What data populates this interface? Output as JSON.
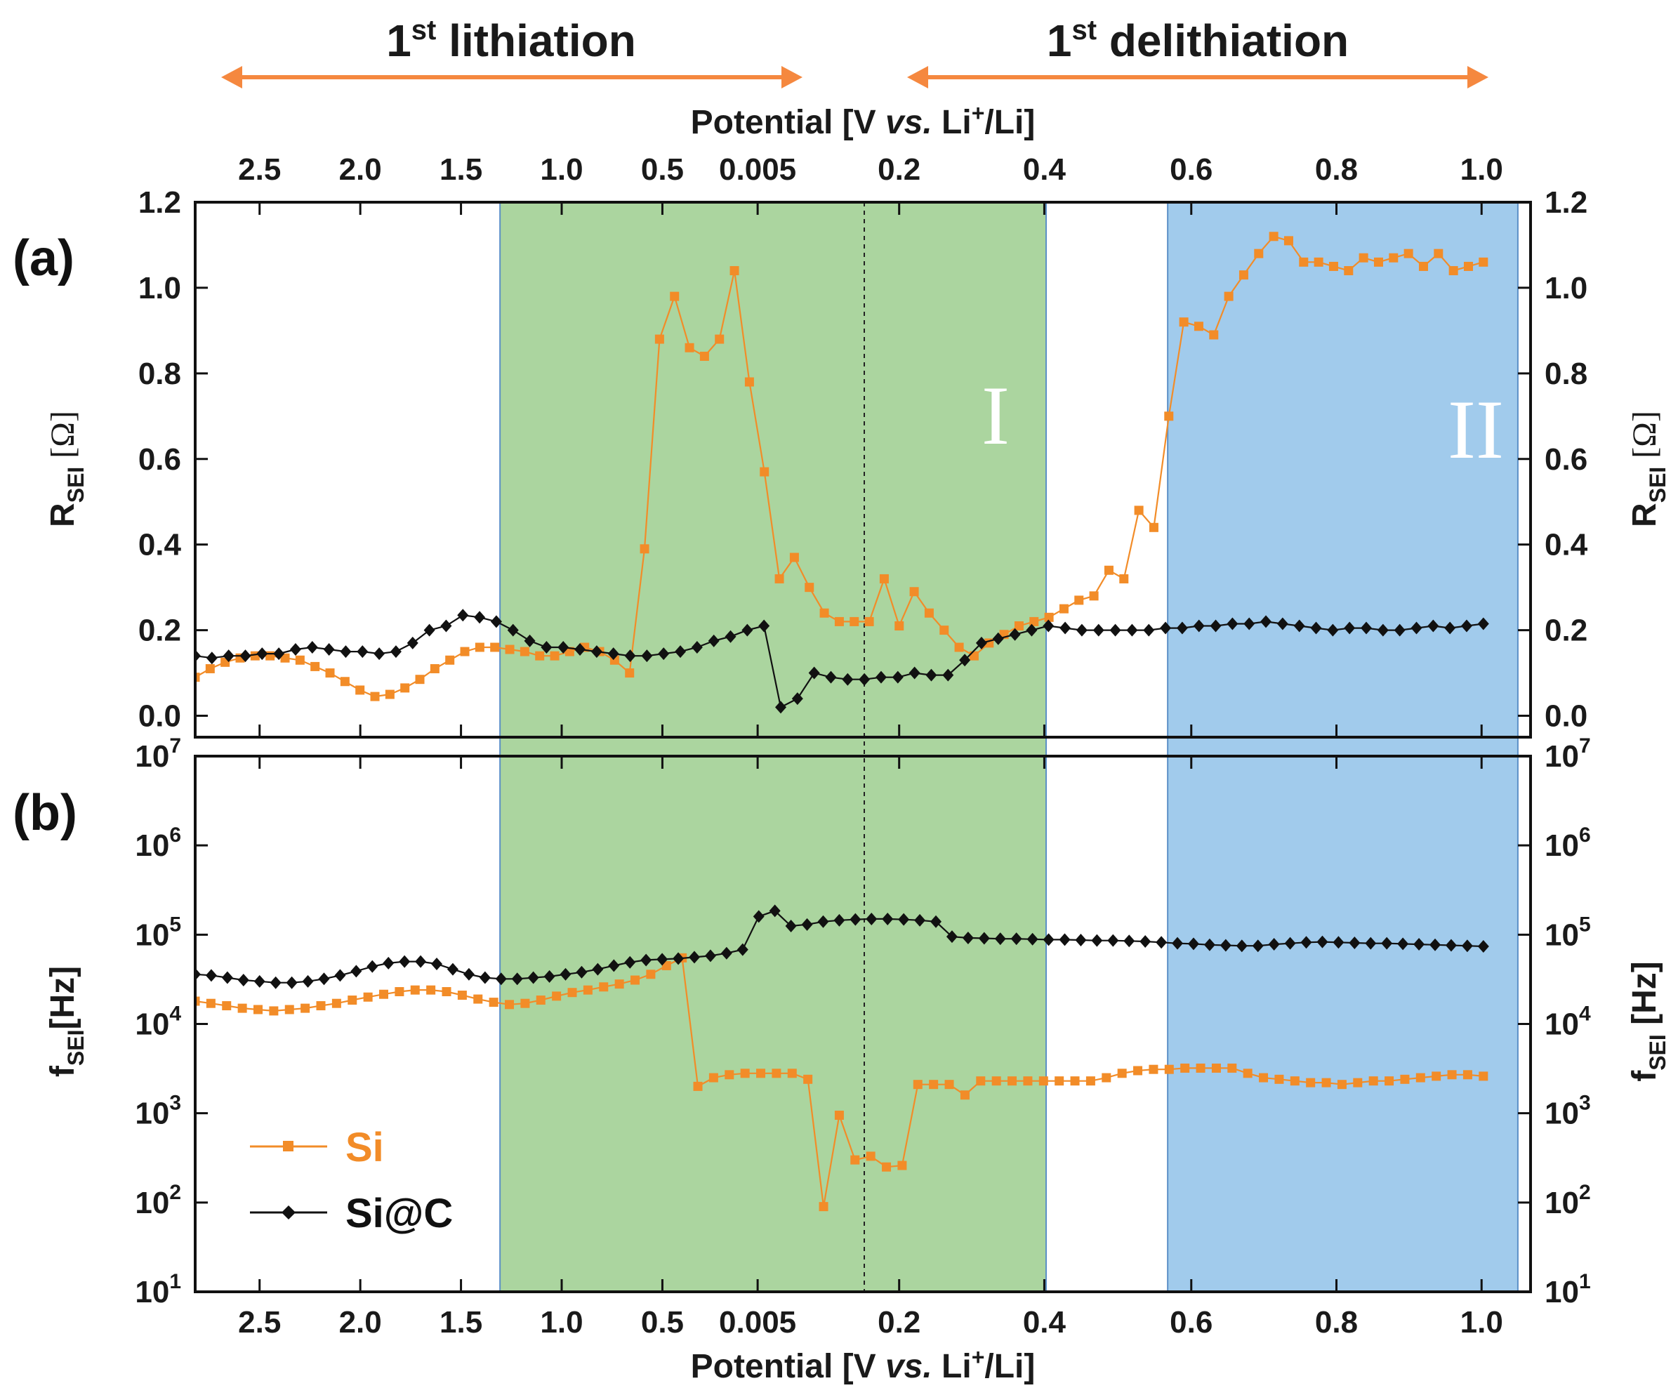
{
  "chart_data": {
    "type": "line",
    "header": {
      "lithiation_label": "1",
      "lithiation_sup": "st",
      "lithiation_rest": " lithiation",
      "delithiation_label": "1",
      "delithiation_sup": "st",
      "delithiation_rest": " delithiation",
      "arrow_color": "#f5883f"
    },
    "x_axis": {
      "title_main": "Potential  [V ",
      "title_italic": "vs.",
      "title_tail_a": " Li",
      "title_sup": "+",
      "title_tail_b": "/Li]",
      "tick_labels": [
        "2.5",
        "2.0",
        "1.5",
        "1.0",
        "0.5",
        "0.005",
        "0.2",
        "0.4",
        "0.6",
        "0.8",
        "1.0"
      ],
      "note": "x is a step index along the potential sweep: lithiation 2.82 V -> 0.005 V (steps 0-31), then delithiation 0.005 V -> 1.0 V (steps 31-71)"
    },
    "regions": [
      {
        "name": "I",
        "from_step": 16.8,
        "to_step": 46.9,
        "color": "#abd59f"
      },
      {
        "name": "II",
        "from_step": 53.6,
        "to_step": 72.9,
        "color": "#a1cbec"
      }
    ],
    "panels": [
      {
        "label": "(a)",
        "ylabel_main": "R",
        "ylabel_sub": "SEI",
        "ylabel_unit": " [Ω]",
        "scale": "linear",
        "ylim": [
          -0.05,
          1.2
        ],
        "yticks": [
          "0.0",
          "0.2",
          "0.4",
          "0.6",
          "0.8",
          "1.0",
          "1.2"
        ],
        "series": [
          {
            "name": "Si",
            "color": "#f28c28",
            "marker": "square",
            "values": [
              0.09,
              0.11,
              0.125,
              0.135,
              0.14,
              0.14,
              0.135,
              0.13,
              0.115,
              0.1,
              0.08,
              0.06,
              0.045,
              0.05,
              0.065,
              0.085,
              0.11,
              0.13,
              0.15,
              0.16,
              0.16,
              0.155,
              0.15,
              0.14,
              0.14,
              0.15,
              0.16,
              0.15,
              0.13,
              0.1,
              0.39,
              0.88,
              0.98,
              0.86,
              0.84,
              0.88,
              1.04,
              0.78,
              0.57,
              0.32,
              0.37,
              0.3,
              0.24,
              0.22,
              0.22,
              0.22,
              0.32,
              0.21,
              0.29,
              0.24,
              0.2,
              0.16,
              0.14,
              0.17,
              0.19,
              0.21,
              0.22,
              0.23,
              0.25,
              0.27,
              0.28,
              0.34,
              0.32,
              0.48,
              0.44,
              0.7,
              0.92,
              0.91,
              0.89,
              0.98,
              1.03,
              1.08,
              1.12,
              1.11,
              1.06,
              1.06,
              1.05,
              1.04,
              1.07,
              1.06,
              1.07,
              1.08,
              1.05,
              1.08,
              1.04,
              1.05,
              1.06
            ]
          },
          {
            "name": "Si@C",
            "color": "#111111",
            "marker": "diamond",
            "values": [
              0.14,
              0.135,
              0.14,
              0.14,
              0.145,
              0.145,
              0.155,
              0.16,
              0.155,
              0.15,
              0.15,
              0.145,
              0.15,
              0.17,
              0.2,
              0.21,
              0.235,
              0.23,
              0.22,
              0.2,
              0.175,
              0.16,
              0.16,
              0.155,
              0.15,
              0.145,
              0.14,
              0.14,
              0.145,
              0.15,
              0.16,
              0.175,
              0.185,
              0.2,
              0.21,
              0.02,
              0.04,
              0.1,
              0.09,
              0.085,
              0.085,
              0.09,
              0.09,
              0.1,
              0.095,
              0.095,
              0.13,
              0.17,
              0.18,
              0.19,
              0.2,
              0.21,
              0.205,
              0.2,
              0.2,
              0.2,
              0.2,
              0.2,
              0.205,
              0.205,
              0.21,
              0.21,
              0.215,
              0.215,
              0.22,
              0.215,
              0.21,
              0.205,
              0.2,
              0.205,
              0.205,
              0.2,
              0.2,
              0.205,
              0.21,
              0.205,
              0.21,
              0.215
            ]
          }
        ]
      },
      {
        "label": "(b)",
        "ylabel_main": "f",
        "ylabel_sub": "SEI",
        "ylabel_unit": "[Hz]",
        "ylabel_unit_right": " [Hz]",
        "scale": "log",
        "ylim": [
          10,
          10000000
        ],
        "ytick_base": "10",
        "ytick_exponents": [
          "1",
          "2",
          "3",
          "4",
          "5",
          "6",
          "7"
        ],
        "series": [
          {
            "name": "Si",
            "color": "#f28c28",
            "marker": "square",
            "values": [
              18000,
              17000,
              16000,
              15000,
              14500,
              14000,
              14500,
              15000,
              16000,
              17000,
              18500,
              20000,
              21500,
              23000,
              24000,
              24000,
              23000,
              21000,
              19000,
              17500,
              16500,
              17000,
              18500,
              20500,
              22500,
              24000,
              26000,
              28000,
              31000,
              36000,
              45000,
              55000,
              2000,
              2500,
              2700,
              2800,
              2800,
              2800,
              2800,
              2400,
              90,
              950,
              300,
              330,
              250,
              260,
              2100,
              2100,
              2100,
              1600,
              2300,
              2300,
              2300,
              2300,
              2300,
              2300,
              2300,
              2300,
              2500,
              2800,
              3000,
              3100,
              3100,
              3200,
              3200,
              3200,
              3200,
              2800,
              2500,
              2400,
              2300,
              2200,
              2200,
              2100,
              2200,
              2300,
              2300,
              2400,
              2500,
              2600,
              2700,
              2700,
              2600
            ]
          },
          {
            "name": "Si@C",
            "color": "#111111",
            "marker": "diamond",
            "values": [
              36000,
              35000,
              33000,
              31000,
              30000,
              29000,
              29000,
              30000,
              32000,
              35000,
              39000,
              44000,
              48000,
              50000,
              50000,
              47000,
              41000,
              36000,
              33000,
              32000,
              32000,
              33000,
              34000,
              36000,
              38000,
              41000,
              45000,
              49000,
              52000,
              53000,
              54000,
              56000,
              58000,
              62000,
              68000,
              160000,
              185000,
              125000,
              130000,
              140000,
              145000,
              148000,
              150000,
              150000,
              148000,
              145000,
              140000,
              95000,
              92000,
              91000,
              90000,
              90000,
              89000,
              88000,
              88000,
              87000,
              86000,
              86000,
              85000,
              84000,
              82000,
              80000,
              79000,
              77000,
              76000,
              75000,
              75000,
              78000,
              80000,
              82000,
              83000,
              82000,
              81000,
              80000,
              80000,
              79000,
              78000,
              77000,
              76000,
              75000,
              74000
            ]
          }
        ]
      }
    ],
    "annotations": {
      "region_I": "I",
      "region_II": "II"
    },
    "legend": [
      {
        "label": "Si",
        "color": "#f28c28"
      },
      {
        "label": "Si@C",
        "color": "#111111"
      }
    ]
  }
}
